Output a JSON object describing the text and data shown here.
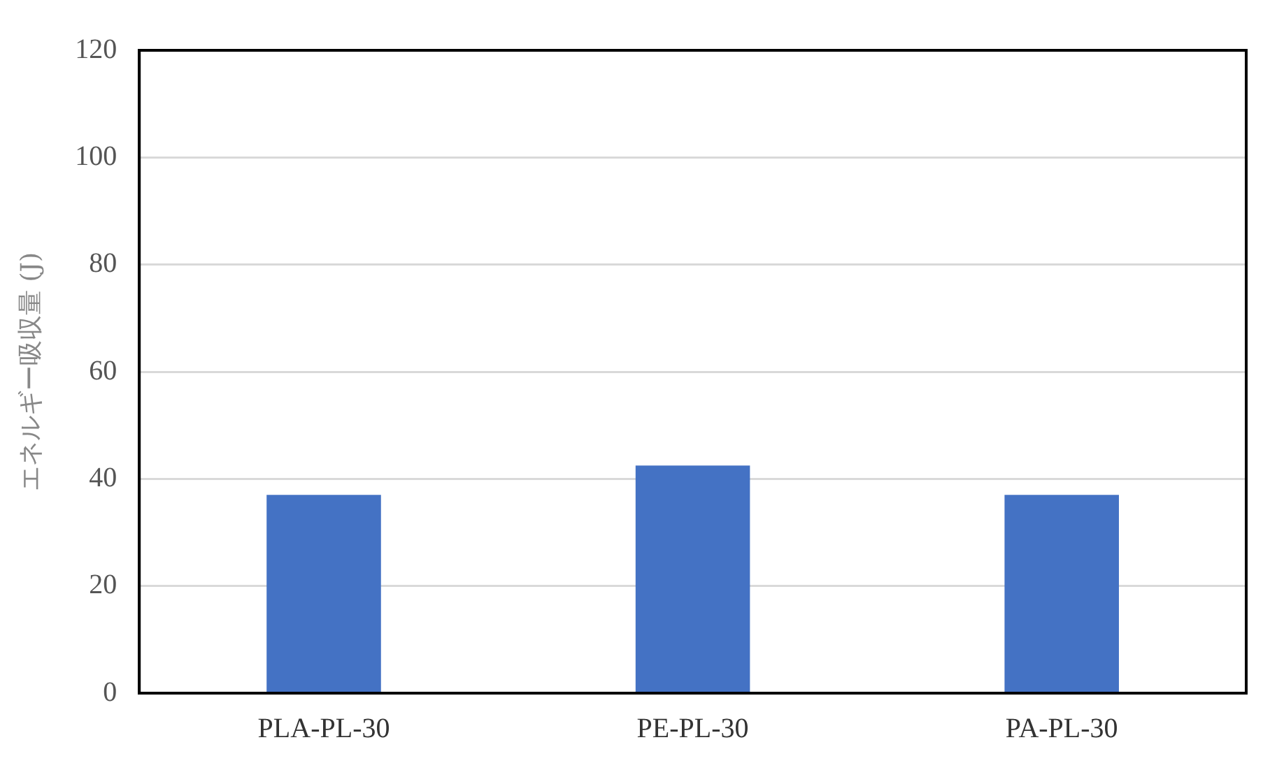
{
  "chart_data": {
    "type": "bar",
    "ylabel": "エネルギー吸収量 (J)",
    "categories": [
      "PLA-PL-30",
      "PE-PL-30",
      "PA-PL-30"
    ],
    "values": [
      37,
      42.5,
      37
    ],
    "color": "#4472c4",
    "ylim": [
      0,
      120
    ],
    "yticks": [
      0,
      20,
      40,
      60,
      80,
      100,
      120
    ],
    "grid": "y"
  }
}
